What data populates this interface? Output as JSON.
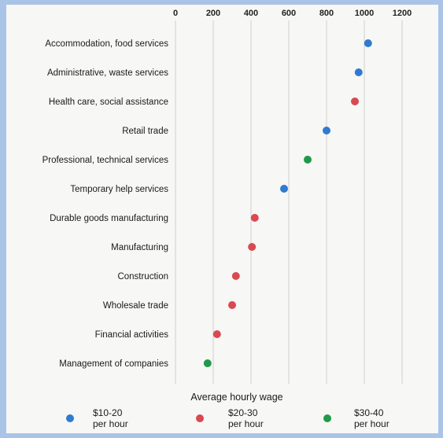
{
  "chart_data": {
    "type": "scatter",
    "title": "",
    "xlabel": "Average hourly wage",
    "ylabel": "",
    "xlim": [
      0,
      1200
    ],
    "x_ticks": [
      "0",
      "200",
      "400",
      "600",
      "800",
      "1000",
      "1200"
    ],
    "grid": true,
    "legend_position": "bottom",
    "categories": [
      "Accommodation, food services",
      "Administrative, waste services",
      "Health care, social assistance",
      "Retail trade",
      "Professional, technical services",
      "Temporary help services",
      "Durable goods manufacturing",
      "Manufacturing",
      "Construction",
      "Wholesale trade",
      "Financial activities",
      "Management of companies"
    ],
    "points": [
      {
        "category": "Accommodation, food services",
        "value": 1020,
        "group": "$10-20"
      },
      {
        "category": "Administrative, waste services",
        "value": 970,
        "group": "$10-20"
      },
      {
        "category": "Health care, social assistance",
        "value": 950,
        "group": "$20-30"
      },
      {
        "category": "Retail trade",
        "value": 800,
        "group": "$10-20"
      },
      {
        "category": "Professional, technical services",
        "value": 700,
        "group": "$30-40"
      },
      {
        "category": "Temporary help services",
        "value": 575,
        "group": "$10-20"
      },
      {
        "category": "Durable goods manufacturing",
        "value": 420,
        "group": "$20-30"
      },
      {
        "category": "Manufacturing",
        "value": 405,
        "group": "$20-30"
      },
      {
        "category": "Construction",
        "value": 320,
        "group": "$20-30"
      },
      {
        "category": "Wholesale trade",
        "value": 300,
        "group": "$20-30"
      },
      {
        "category": "Financial activities",
        "value": 220,
        "group": "$20-30"
      },
      {
        "category": "Management of companies",
        "value": 170,
        "group": "$30-40"
      }
    ],
    "legend": [
      {
        "group": "$10-20",
        "line1": "$10-20",
        "line2": "per hour",
        "color": "#2f7bd0"
      },
      {
        "group": "$20-30",
        "line1": "$20-30",
        "line2": "per hour",
        "color": "#d84a52"
      },
      {
        "group": "$30-40",
        "line1": "$30-40",
        "line2": "per hour",
        "color": "#1f9a4a"
      }
    ]
  }
}
